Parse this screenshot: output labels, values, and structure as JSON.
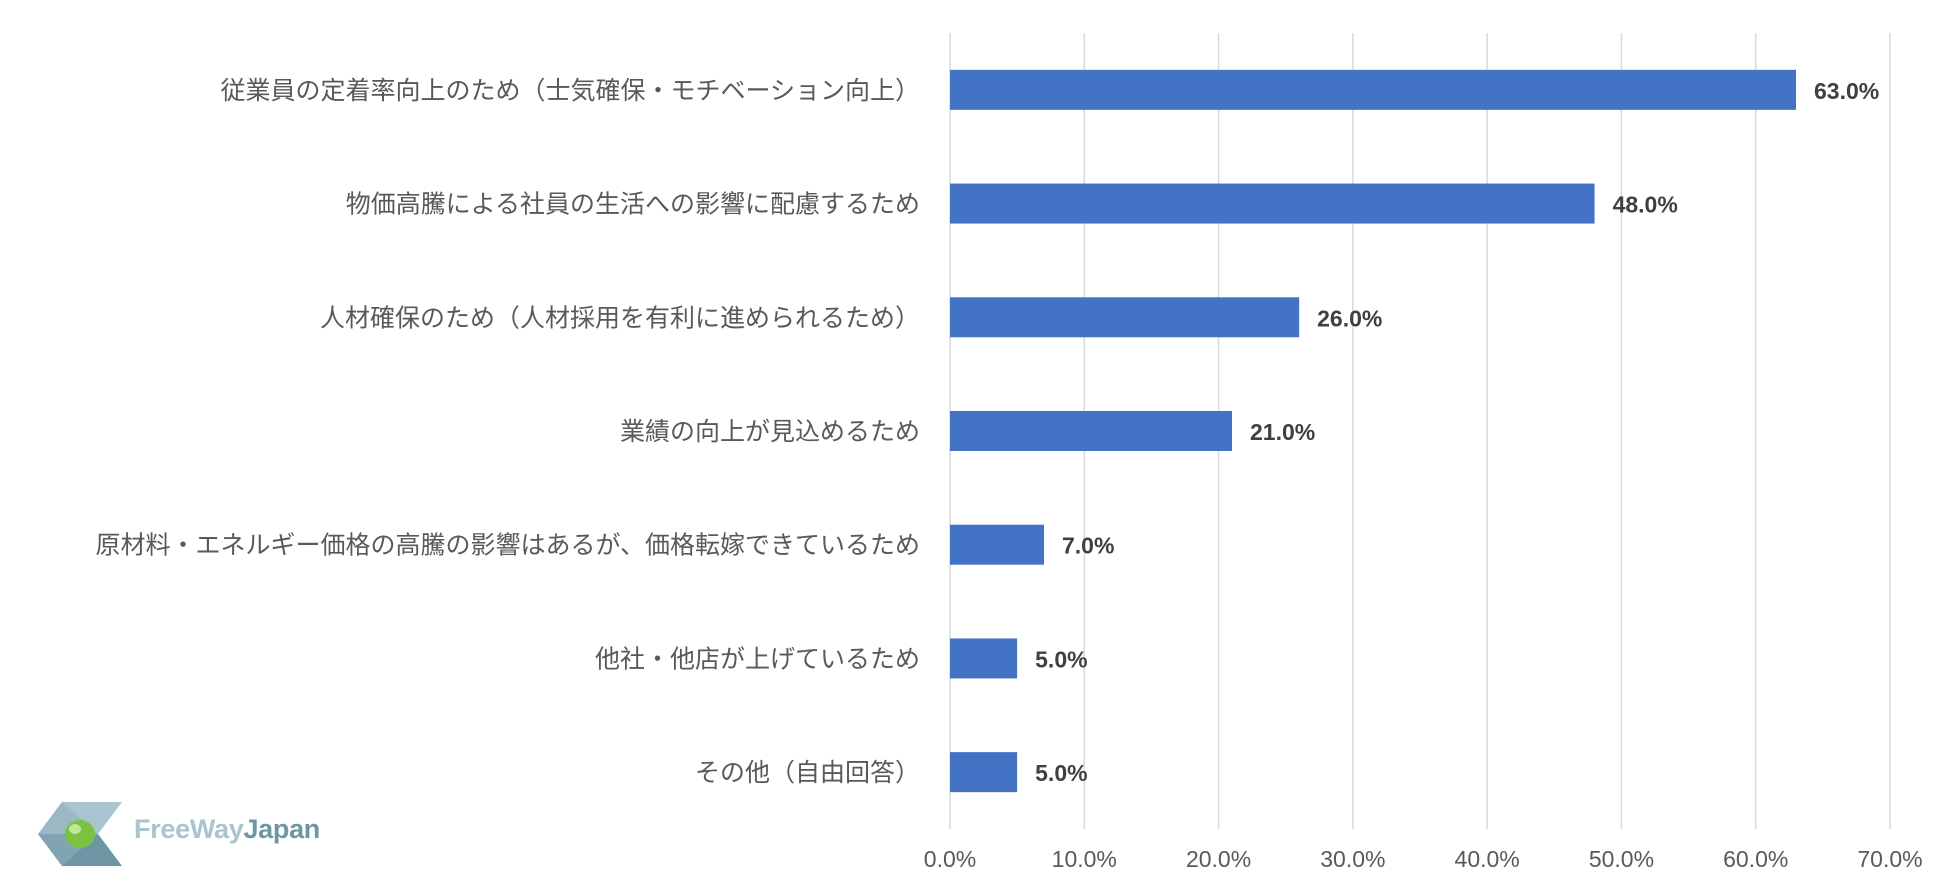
{
  "chart_data": {
    "type": "bar",
    "orientation": "horizontal",
    "categories": [
      "従業員の定着率向上のため（士気確保・モチベーション向上）",
      "物価高騰による社員の生活への影響に配慮するため",
      "人材確保のため（人材採用を有利に進められるため）",
      "業績の向上が見込めるため",
      "原材料・エネルギー価格の高騰の影響はあるが、価格転嫁できているため",
      "他社・他店が上げているため",
      "その他（自由回答）"
    ],
    "values": [
      63.0,
      48.0,
      26.0,
      21.0,
      7.0,
      5.0,
      5.0
    ],
    "value_labels": [
      "63.0%",
      "48.0%",
      "26.0%",
      "21.0%",
      "7.0%",
      "5.0%",
      "5.0%"
    ],
    "xlim": [
      0,
      70
    ],
    "x_ticks": [
      "0.0%",
      "10.0%",
      "20.0%",
      "30.0%",
      "40.0%",
      "50.0%",
      "60.0%",
      "70.0%"
    ],
    "grid": true,
    "bar_color": "#4472c4",
    "title": "",
    "xlabel": "",
    "ylabel": ""
  },
  "logo": {
    "text_part1": "FreeWay",
    "text_part2": "Japan",
    "colors": {
      "light": "#a9c4cf",
      "dark": "#6d95a4",
      "green": "#7cc242"
    }
  }
}
